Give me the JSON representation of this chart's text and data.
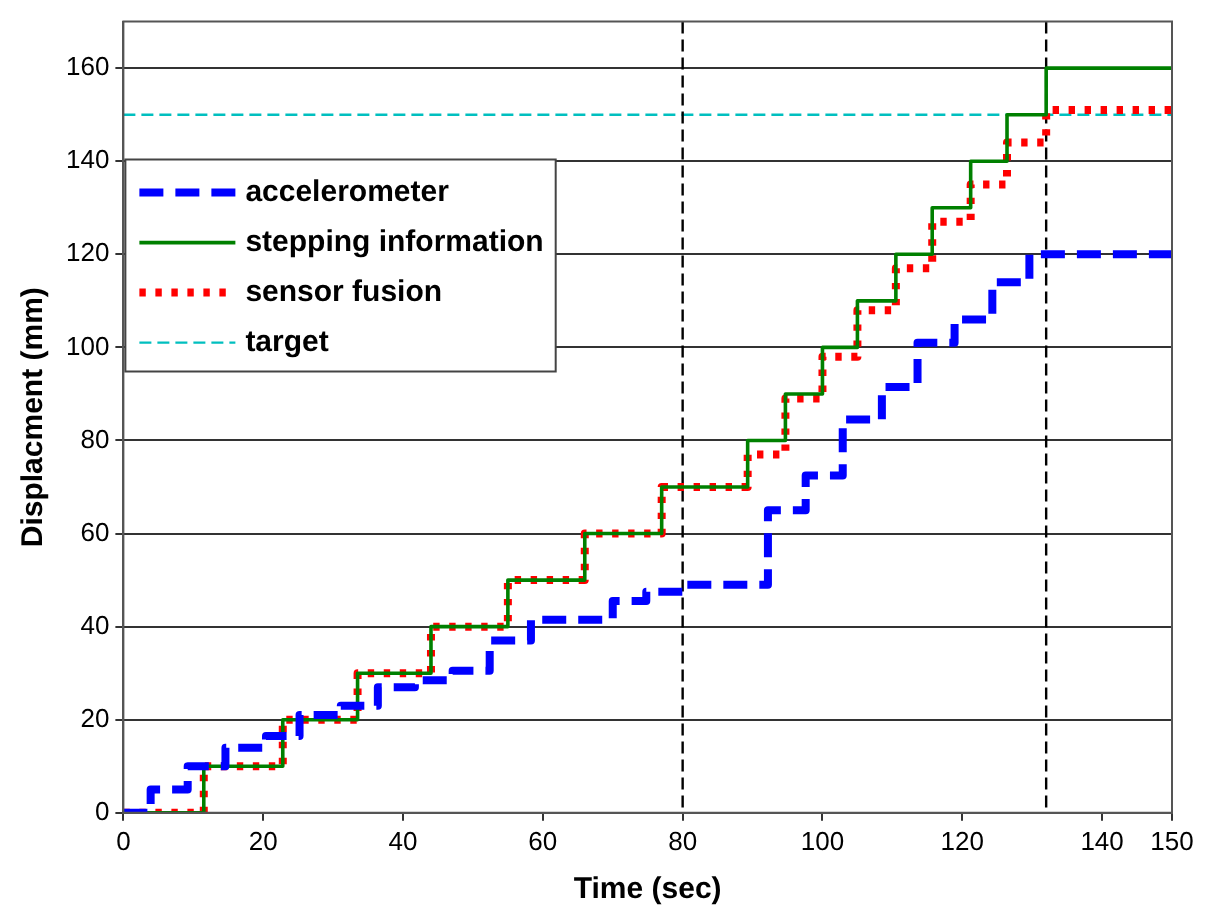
{
  "chart_data": {
    "type": "step",
    "xlabel": "Time (sec)",
    "ylabel": "Displacment (mm)",
    "xlim": [
      0,
      150
    ],
    "xticks": [
      0,
      20,
      40,
      60,
      80,
      100,
      120,
      140,
      150
    ],
    "ylim": [
      0,
      170
    ],
    "yticks": [
      0,
      20,
      40,
      60,
      80,
      100,
      120,
      140,
      160
    ],
    "grid": "y",
    "legend": "top left",
    "marker": "none",
    "series": [
      {
        "name": "accelerometer",
        "color": "#0000ff",
        "line_style": "dashed",
        "x": [
          0,
          3.9,
          9.2,
          14.6,
          20.4,
          25.2,
          31.1,
          36.4,
          41.7,
          47.1,
          52.4,
          58.3,
          70,
          74.8,
          80.6,
          92.2,
          97.6,
          102.9,
          108.5,
          113.6,
          118.9,
          124.3,
          129.6,
          150
        ],
        "values": [
          0,
          5,
          10,
          14,
          16.5,
          21,
          23,
          27,
          28.5,
          30.5,
          37,
          41.5,
          45.5,
          47.5,
          49,
          65,
          72.5,
          84.5,
          91.5,
          101,
          106,
          114,
          120,
          120
        ]
      },
      {
        "name": "stepping information",
        "color": "#008000",
        "line_style": "solid",
        "x": [
          0,
          11.5,
          22.8,
          33.5,
          44,
          55,
          66,
          77,
          89.3,
          94.7,
          100,
          105,
          110.5,
          115.7,
          121.2,
          126.4,
          132,
          150
        ],
        "values": [
          0,
          10,
          20,
          30,
          40,
          50,
          60,
          70,
          80,
          90,
          100,
          110,
          120,
          130,
          140,
          150,
          160,
          160
        ]
      },
      {
        "name": "sensor fusion",
        "color": "#ff0000",
        "line_style": "dotted",
        "x": [
          0,
          11.5,
          22.8,
          33.5,
          44,
          55,
          66,
          77,
          89.3,
          94.7,
          100,
          105,
          110.5,
          115.7,
          121.2,
          126.4,
          132,
          150
        ],
        "values": [
          0,
          10,
          20,
          30,
          40,
          50,
          60,
          70,
          77,
          89,
          98,
          108,
          117,
          127,
          135,
          144,
          151,
          151
        ]
      }
    ],
    "ref_lines": [
      {
        "axis": "y",
        "value": 150,
        "label": "target",
        "color": "#00bfbf",
        "line_style": "dashed"
      },
      {
        "axis": "x",
        "value": 80,
        "color": "#000000",
        "line_style": "dashed"
      },
      {
        "axis": "x",
        "value": 132,
        "color": "#000000",
        "line_style": "dashed"
      }
    ]
  }
}
